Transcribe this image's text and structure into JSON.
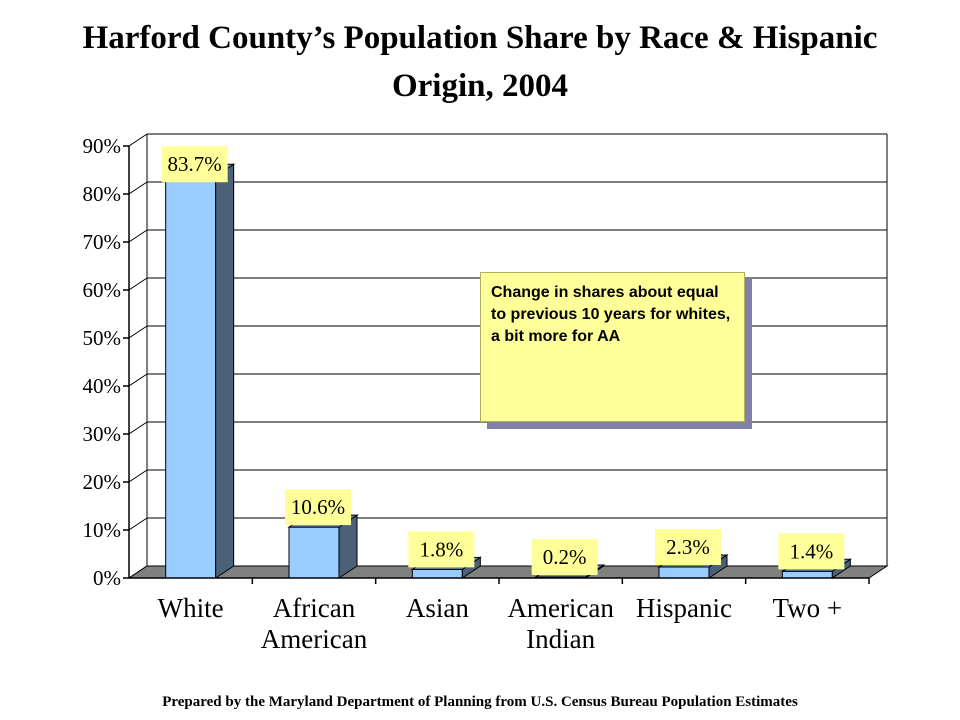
{
  "chart_data": {
    "type": "bar",
    "title": "Harford County’s Population Share by Race & Hispanic Origin, 2004",
    "categories": [
      [
        "White"
      ],
      [
        "African",
        "American"
      ],
      [
        "Asian"
      ],
      [
        "American",
        "Indian"
      ],
      [
        "Hispanic"
      ],
      [
        "Two +"
      ]
    ],
    "values": [
      83.7,
      10.6,
      1.8,
      0.2,
      2.3,
      1.4
    ],
    "data_labels": [
      "83.7%",
      "10.6%",
      "1.8%",
      "0.2%",
      "2.3%",
      "1.4%"
    ],
    "ylim": [
      0,
      90
    ],
    "yticks": [
      0,
      10,
      20,
      30,
      40,
      50,
      60,
      70,
      80,
      90
    ],
    "ytick_labels": [
      "0%",
      "10%",
      "20%",
      "30%",
      "40%",
      "50%",
      "60%",
      "70%",
      "80%",
      "90%"
    ],
    "grid": true,
    "three_d": true,
    "colors": {
      "bar_front": "#99ccff",
      "bar_side": "#4a6178",
      "bar_top": "#6a8aa8",
      "floor": "#808080",
      "label_bg": "#ffff99",
      "grid": "#000000"
    },
    "annotation": "Change in shares about equal to previous 10 years for whites, a bit more for AA"
  },
  "footer": "Prepared by the Maryland Department of Planning from U.S. Census Bureau Population Estimates"
}
